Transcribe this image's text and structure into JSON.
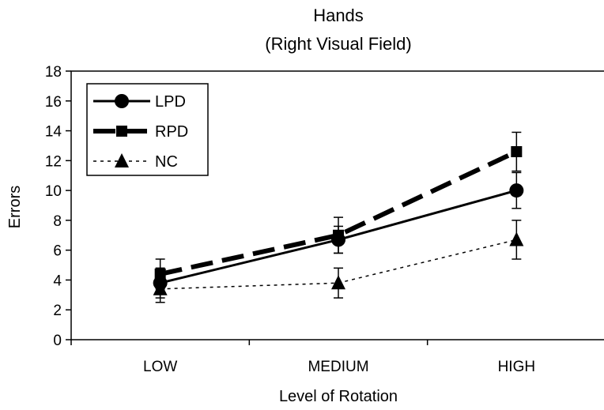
{
  "chart_data": {
    "type": "line",
    "title": "Hands",
    "subtitle": "(Right Visual Field)",
    "xlabel": "Level of Rotation",
    "ylabel": "Errors",
    "categories": [
      "LOW",
      "MEDIUM",
      "HIGH"
    ],
    "ylim": [
      0,
      18
    ],
    "yticks": [
      0,
      2,
      4,
      6,
      8,
      10,
      12,
      14,
      16,
      18
    ],
    "ytick_labels": [
      "0",
      "2",
      "4",
      "6",
      "8",
      "10",
      "12",
      "14",
      "16",
      "18"
    ],
    "grid": false,
    "legend_position": "top-left",
    "series": [
      {
        "name": "LPD",
        "values": [
          3.8,
          6.7,
          10.0
        ],
        "error": [
          1.0,
          0.9,
          1.2
        ],
        "marker": "circle",
        "line": "solid",
        "color": "#000000"
      },
      {
        "name": "RPD",
        "values": [
          4.4,
          7.0,
          12.6
        ],
        "error": [
          1.0,
          1.2,
          1.3
        ],
        "marker": "square",
        "line": "dashed",
        "color": "#000000"
      },
      {
        "name": "NC",
        "values": [
          3.4,
          3.8,
          6.7
        ],
        "error": [
          0.9,
          1.0,
          1.3
        ],
        "marker": "triangle",
        "line": "dotted",
        "color": "#000000"
      }
    ]
  }
}
